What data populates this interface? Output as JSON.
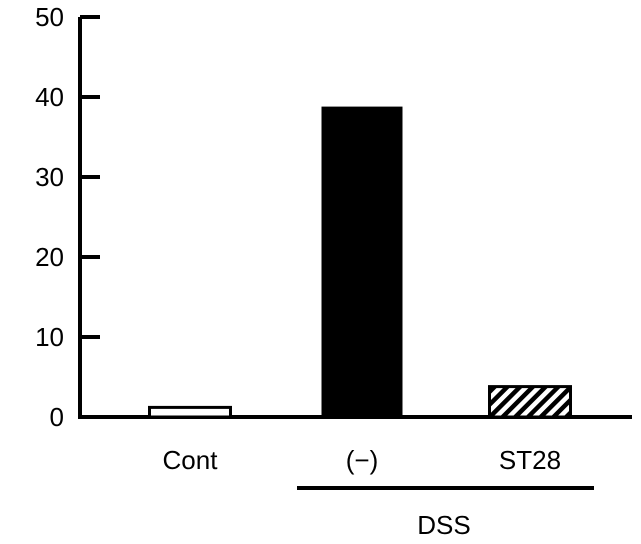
{
  "chart_data": {
    "type": "bar",
    "categories": [
      "Cont",
      "(−)",
      "ST28"
    ],
    "values": [
      1.2,
      38.8,
      3.8
    ],
    "bar_styles": [
      "white",
      "black",
      "hatched"
    ],
    "ylim": [
      0,
      50
    ],
    "yticks": [
      "0",
      "10",
      "20",
      "30",
      "40",
      "50"
    ],
    "group_label": "DSS",
    "group_members": [
      "(−)",
      "ST28"
    ],
    "grid": false,
    "legend": "none"
  }
}
